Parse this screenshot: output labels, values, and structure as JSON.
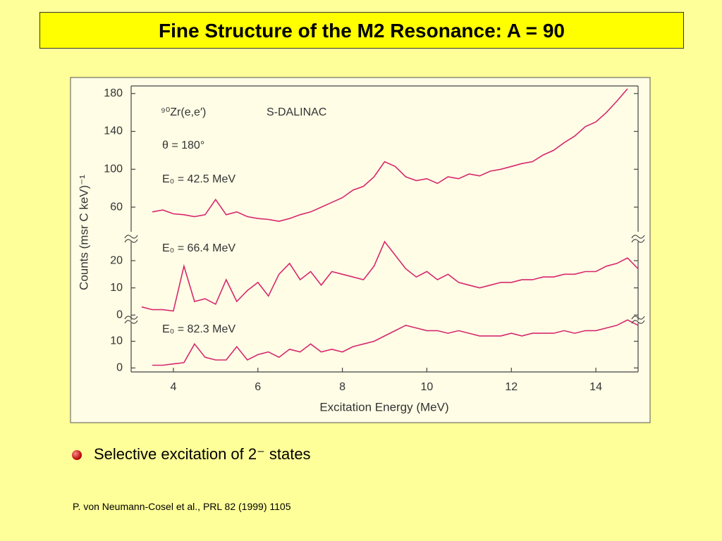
{
  "slide": {
    "title": "Fine Structure of the M2 Resonance: A = 90",
    "bullet": "Selective excitation of 2⁻ states",
    "citation": "P. von Neumann-Cosel et al., PRL 82 (1999) 1105"
  },
  "chart_data": [
    {
      "type": "line",
      "annotations": [
        "⁹⁰Zr(e,e′)",
        "S-DALINAC",
        "θ = 180°",
        "E₀ = 42.5 MeV"
      ],
      "color": "#d6286e",
      "x": [
        3.5,
        3.75,
        4,
        4.25,
        4.5,
        4.75,
        5,
        5.25,
        5.5,
        5.75,
        6,
        6.25,
        6.5,
        6.75,
        7,
        7.25,
        7.5,
        7.75,
        8,
        8.25,
        8.5,
        8.75,
        9,
        9.25,
        9.5,
        9.75,
        10,
        10.25,
        10.5,
        10.75,
        11,
        11.25,
        11.5,
        11.75,
        12,
        12.25,
        12.5,
        12.75,
        13,
        13.25,
        13.5,
        13.75,
        14,
        14.25,
        14.5,
        14.75
      ],
      "values": [
        55,
        57,
        53,
        52,
        50,
        52,
        68,
        52,
        55,
        50,
        48,
        47,
        45,
        48,
        52,
        55,
        60,
        65,
        70,
        78,
        82,
        92,
        108,
        103,
        92,
        88,
        90,
        85,
        92,
        90,
        95,
        93,
        98,
        100,
        103,
        106,
        108,
        115,
        120,
        128,
        135,
        145,
        150,
        160,
        172,
        185
      ],
      "ylim": [
        34,
        188
      ],
      "yticks": [
        60,
        100,
        140,
        180
      ]
    },
    {
      "type": "line",
      "annotations": [
        "E₀ = 66.4 MeV"
      ],
      "color": "#d6286e",
      "ylabel": "Counts (msr C keV)⁻¹",
      "x": [
        3.25,
        3.5,
        3.75,
        4,
        4.25,
        4.5,
        4.75,
        5,
        5.25,
        5.5,
        5.75,
        6,
        6.25,
        6.5,
        6.75,
        7,
        7.25,
        7.5,
        7.75,
        8,
        8.25,
        8.5,
        8.75,
        9,
        9.25,
        9.5,
        9.75,
        10,
        10.25,
        10.5,
        10.75,
        11,
        11.25,
        11.5,
        11.75,
        12,
        12.25,
        12.5,
        12.75,
        13,
        13.25,
        13.5,
        13.75,
        14,
        14.25,
        14.5,
        14.75,
        15
      ],
      "values": [
        3,
        2,
        2,
        1.5,
        18,
        5,
        6,
        4,
        13,
        5,
        9,
        12,
        7,
        15,
        19,
        13,
        16,
        11,
        16,
        15,
        14,
        13,
        18,
        27,
        22,
        17,
        14,
        16,
        13,
        15,
        12,
        11,
        10,
        11,
        12,
        12,
        13,
        13,
        14,
        14,
        15,
        15,
        16,
        16,
        18,
        19,
        21,
        17
      ],
      "ylim": [
        -2,
        27
      ],
      "yticks": [
        0,
        10,
        20
      ]
    },
    {
      "type": "line",
      "annotations": [
        "E₀ = 82.3 MeV"
      ],
      "color": "#d6286e",
      "xlabel": "Excitation Energy (MeV)",
      "x": [
        3.5,
        3.75,
        4,
        4.25,
        4.5,
        4.75,
        5,
        5.25,
        5.5,
        5.75,
        6,
        6.25,
        6.5,
        6.75,
        7,
        7.25,
        7.5,
        7.75,
        8,
        8.25,
        8.5,
        8.75,
        9,
        9.25,
        9.5,
        9.75,
        10,
        10.25,
        10.5,
        10.75,
        11,
        11.25,
        11.5,
        11.75,
        12,
        12.25,
        12.5,
        12.75,
        13,
        13.25,
        13.5,
        13.75,
        14,
        14.25,
        14.5,
        14.75,
        15
      ],
      "values": [
        1,
        1,
        1.5,
        2,
        9,
        4,
        3,
        3,
        8,
        3,
        5,
        6,
        4,
        7,
        6,
        9,
        6,
        7,
        6,
        8,
        9,
        10,
        12,
        14,
        16,
        15,
        14,
        14,
        13,
        14,
        13,
        12,
        12,
        12,
        13,
        12,
        13,
        13,
        13,
        14,
        13,
        14,
        14,
        15,
        16,
        18,
        16
      ],
      "ylim": [
        -1.5,
        17
      ],
      "yticks": [
        0,
        10
      ],
      "xlim": [
        3,
        15
      ],
      "xticks": [
        4,
        6,
        8,
        10,
        12,
        14
      ]
    }
  ]
}
